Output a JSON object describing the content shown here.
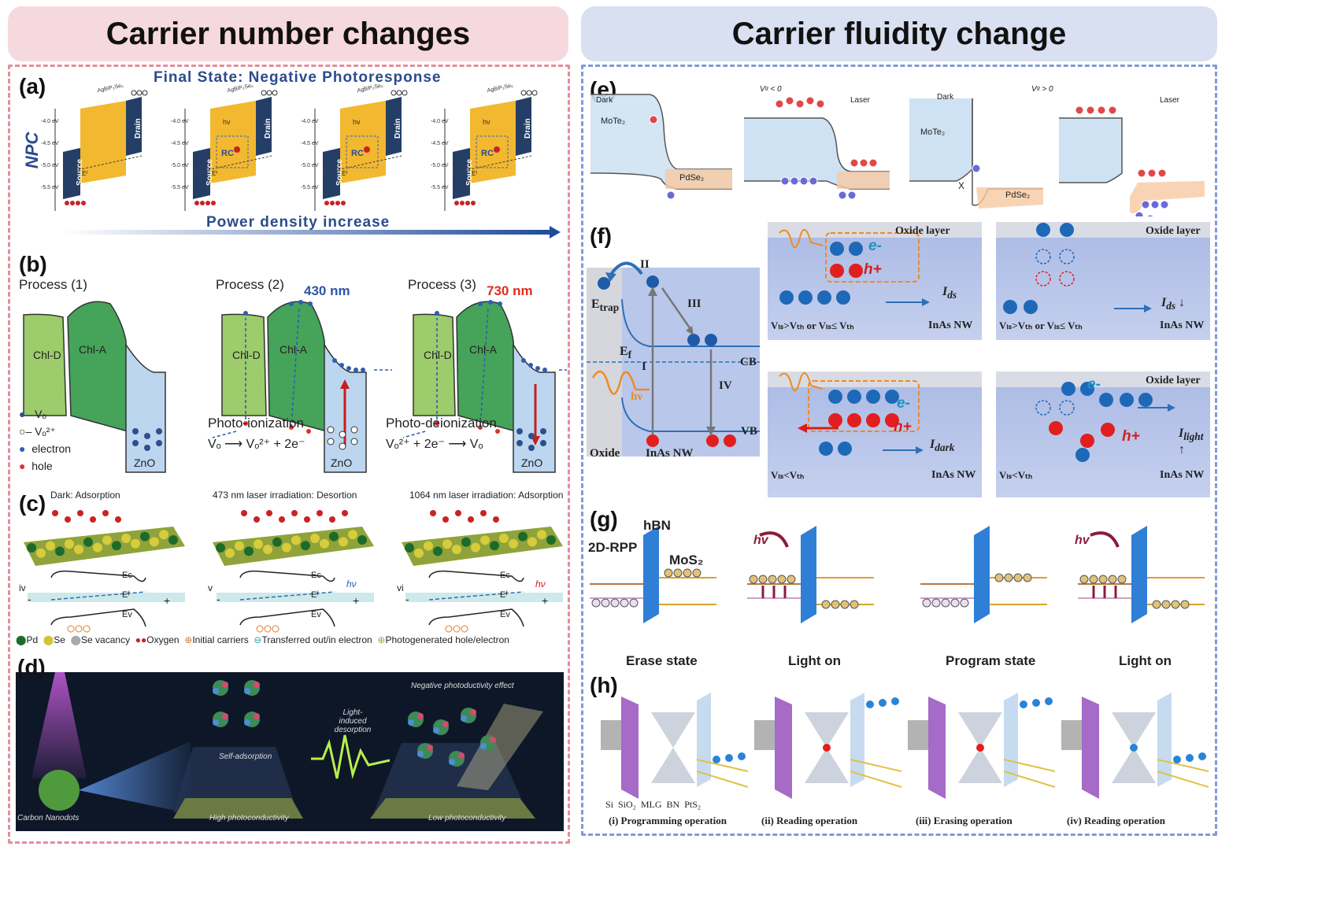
{
  "headers": {
    "left": "Carrier number changes",
    "right": "Carrier fluidity change"
  },
  "colors": {
    "left_header_bg": "#f6d9de",
    "right_header_bg": "#d8e0f1",
    "left_frame": "#e58d9b",
    "right_frame": "#7f9bd6",
    "ef_red": "#e52b2b",
    "band_blue": "#2f6fb6"
  },
  "panel_a": {
    "label": "(a)",
    "title": "Final State: Negative Photoresponse",
    "ylabel": "NPC",
    "footer": "Power density increase",
    "device_top": "AgBiP₂Se₆",
    "source": "Source",
    "drain": "Drain",
    "rc": "RC",
    "ef": "Eᶠ",
    "hv": "hν",
    "ticks": [
      "-4.0 eV",
      "-4.5 eV",
      "-5.0 eV",
      "-5.5 eV"
    ]
  },
  "panel_b": {
    "label": "(b)",
    "p1": "Process (1)",
    "p2": "Process (2)",
    "p3": "Process (3)",
    "nm430": "430 nm",
    "nm730": "730 nm",
    "chld": "Chl-D",
    "chla": "Chl-A",
    "zno": "ZnO",
    "legend": [
      "Vₒ",
      "Vₒ²⁺",
      "electron",
      "hole"
    ],
    "photo_ion": "Photo-ionization",
    "photo_ion_eq": "Vₒ ⟶ Vₒ²⁺ + 2e⁻",
    "photo_deion": "Photo-deionization",
    "photo_deion_eq": "Vₒ²⁺ + 2e⁻ ⟶ Vₒ"
  },
  "panel_c": {
    "label": "(c)",
    "t1": "Dark: Adsorption",
    "t2": "473 nm laser irradiation: Desortion",
    "t3": "1064 nm laser irradiation: Adsorption",
    "r1": "iv",
    "r2": "v",
    "r3": "vi",
    "ec": "Eᴄ",
    "ef": "Eᶠ",
    "ev": "Eᴠ",
    "hv": "hν",
    "minus": "-",
    "plus": "+",
    "legend": [
      "Pd",
      "Se",
      "Se vacancy",
      "Oxygen",
      "Initial carriers",
      "Transferred out/in electron",
      "Photogenerated hole/electron"
    ]
  },
  "panel_d": {
    "label": "(d)",
    "carbon": "Carbon Nanodots",
    "self": "Self-adsorption",
    "high": "High photoconductivity",
    "light": "Light-induced desorption",
    "neg": "Negative photoductivity effect",
    "low": "Low photoconductivity"
  },
  "panel_e": {
    "label": "(e)",
    "dark": "Dark",
    "laser": "Laser",
    "vg_neg": "Vᵍ < 0",
    "vg_pos": "Vᵍ > 0",
    "mote2": "MoTe₂",
    "pdse2": "PdSe₂",
    "x": "X"
  },
  "panel_f": {
    "label": "(f)",
    "ii": "II",
    "iii": "III",
    "i": "I",
    "iv": "IV",
    "etrap": "E",
    "etrap_sub": "trap",
    "ef": "E",
    "ef_sub": "f",
    "cb": "CB",
    "vb": "VB",
    "hv": "hν",
    "oxide": "Oxide",
    "inas": "InAs NW",
    "oxide_layer": "Oxide layer",
    "inas_nw": "InAs NW",
    "e_minus": "e-",
    "h_plus": "h+",
    "ids": "I",
    "ids_sub": "ds",
    "idark_sub": "dark",
    "ilight_sub": "light",
    "cond_a": "Vₗₛ>Vₜₕ or Vₗₛ≤ Vₜₕ",
    "cond_b": "Vₗₛ<Vₜₕ"
  },
  "panel_g": {
    "label": "(g)",
    "hbn": "hBN",
    "rpp": "2D-RPP",
    "mos2": "MoS₂",
    "hv": "hv",
    "captions": [
      "Erase state",
      "Light on",
      "Program state",
      "Light on"
    ]
  },
  "panel_h": {
    "label": "(h)",
    "materials": "Si  SiO₂  MLG  BN  PtS₂",
    "captions": [
      "(i) Programming operation",
      "(ii) Reading operation",
      "(iii) Erasing operation",
      "(iv) Reading operation"
    ]
  }
}
